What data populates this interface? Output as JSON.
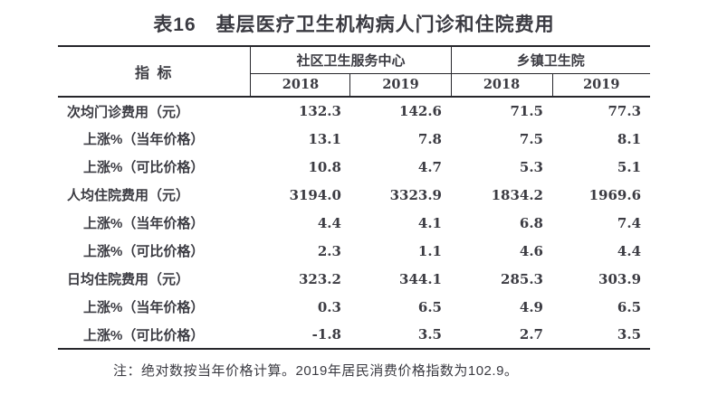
{
  "title": "表16　基层医疗卫生机构病人门诊和住院费用",
  "table": {
    "indicator_header": "指 标",
    "groups": [
      {
        "label": "社区卫生服务中心",
        "years": [
          "2018",
          "2019"
        ]
      },
      {
        "label": "乡镇卫生院",
        "years": [
          "2018",
          "2019"
        ]
      }
    ],
    "rows": [
      {
        "label": "次均门诊费用（元）",
        "indent": 0,
        "values": [
          "132.3",
          "142.6",
          "71.5",
          "77.3"
        ]
      },
      {
        "label": "上涨%（当年价格）",
        "indent": 1,
        "values": [
          "13.1",
          "7.8",
          "7.5",
          "8.1"
        ]
      },
      {
        "label": "上涨%（可比价格）",
        "indent": 1,
        "values": [
          "10.8",
          "4.7",
          "5.3",
          "5.1"
        ]
      },
      {
        "label": "人均住院费用（元）",
        "indent": 0,
        "values": [
          "3194.0",
          "3323.9",
          "1834.2",
          "1969.6"
        ]
      },
      {
        "label": "上涨%（当年价格）",
        "indent": 1,
        "values": [
          "4.4",
          "4.1",
          "6.8",
          "7.4"
        ]
      },
      {
        "label": "上涨%（可比价格）",
        "indent": 1,
        "values": [
          "2.3",
          "1.1",
          "4.6",
          "4.4"
        ]
      },
      {
        "label": "日均住院费用（元）",
        "indent": 0,
        "values": [
          "323.2",
          "344.1",
          "285.3",
          "303.9"
        ]
      },
      {
        "label": "上涨%（当年价格）",
        "indent": 1,
        "values": [
          "0.3",
          "6.5",
          "4.9",
          "6.5"
        ]
      },
      {
        "label": "上涨%（可比价格）",
        "indent": 1,
        "values": [
          "-1.8",
          "3.5",
          "2.7",
          "3.5"
        ]
      }
    ]
  },
  "note": "注：绝对数按当年价格计算。2019年居民消费价格指数为102.9。",
  "colors": {
    "text": "#3b3b42",
    "border": "#26262b",
    "background": "#ffffff"
  }
}
